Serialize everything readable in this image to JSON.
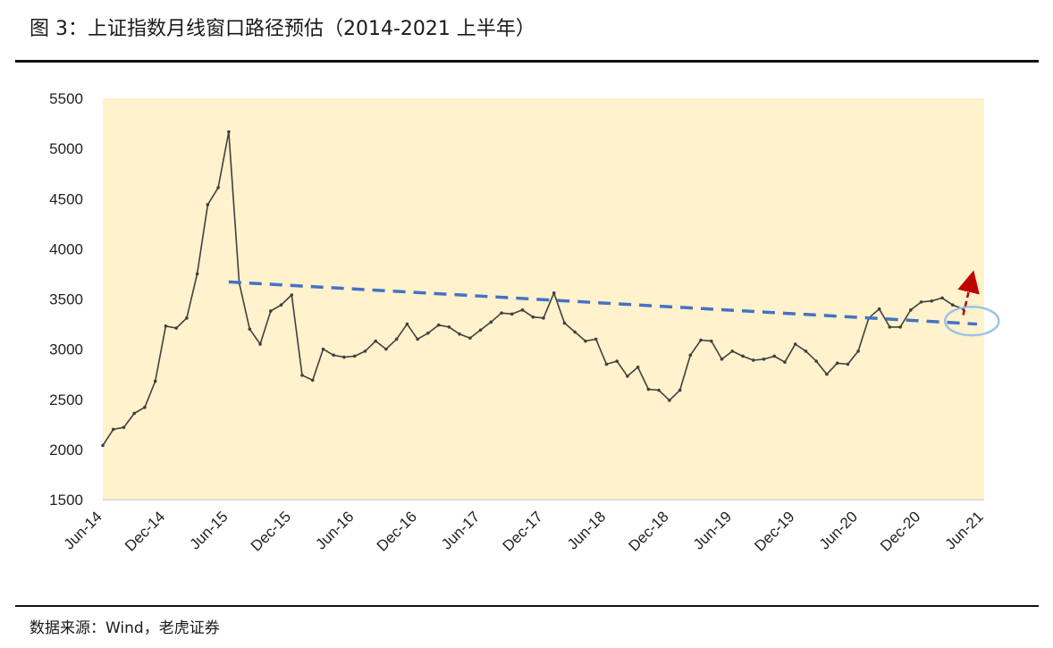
{
  "header": {
    "title": "图 3：上证指数月线窗口路径预估（2014-2021 上半年）"
  },
  "footer": {
    "source": "数据来源：Wind，老虎证券"
  },
  "colors": {
    "plot_background": "#FFF2CC",
    "price": "#404040",
    "trendline": "#4472C4",
    "arrow": "#C00000",
    "ellipse": "#9DC3E6"
  },
  "chart_data": {
    "type": "line",
    "title": "",
    "xlabel": "",
    "ylabel": "",
    "ylim": [
      1500,
      5500
    ],
    "yticks": [
      1500,
      2000,
      2500,
      3000,
      3500,
      4000,
      4500,
      5000,
      5500
    ],
    "xlim": [
      "2014-06",
      "2021-06"
    ],
    "xticks": [
      "Jun-14",
      "Dec-14",
      "Jun-15",
      "Dec-15",
      "Jun-16",
      "Dec-16",
      "Jun-17",
      "Dec-17",
      "Jun-18",
      "Dec-18",
      "Jun-19",
      "Dec-19",
      "Jun-20",
      "Dec-20",
      "Jun-21"
    ],
    "grid": false,
    "legend": "none",
    "series": [
      {
        "values": [
          {
            "x": "2014-06",
            "y": 2040
          },
          {
            "x": "2014-07",
            "y": 2200
          },
          {
            "x": "2014-08",
            "y": 2220
          },
          {
            "x": "2014-09",
            "y": 2360
          },
          {
            "x": "2014-10",
            "y": 2420
          },
          {
            "x": "2014-11",
            "y": 2680
          },
          {
            "x": "2014-12",
            "y": 3230
          },
          {
            "x": "2015-01",
            "y": 3210
          },
          {
            "x": "2015-02",
            "y": 3310
          },
          {
            "x": "2015-03",
            "y": 3750
          },
          {
            "x": "2015-04",
            "y": 4440
          },
          {
            "x": "2015-05",
            "y": 4610
          },
          {
            "x": "2015-06",
            "y": 5166
          },
          {
            "x": "2015-07",
            "y": 3660
          },
          {
            "x": "2015-08",
            "y": 3200
          },
          {
            "x": "2015-09",
            "y": 3050
          },
          {
            "x": "2015-10",
            "y": 3380
          },
          {
            "x": "2015-11",
            "y": 3440
          },
          {
            "x": "2015-12",
            "y": 3540
          },
          {
            "x": "2016-01",
            "y": 2740
          },
          {
            "x": "2016-02",
            "y": 2690
          },
          {
            "x": "2016-03",
            "y": 3000
          },
          {
            "x": "2016-04",
            "y": 2940
          },
          {
            "x": "2016-05",
            "y": 2920
          },
          {
            "x": "2016-06",
            "y": 2930
          },
          {
            "x": "2016-07",
            "y": 2980
          },
          {
            "x": "2016-08",
            "y": 3080
          },
          {
            "x": "2016-09",
            "y": 3000
          },
          {
            "x": "2016-10",
            "y": 3100
          },
          {
            "x": "2016-11",
            "y": 3250
          },
          {
            "x": "2016-12",
            "y": 3100
          },
          {
            "x": "2017-01",
            "y": 3160
          },
          {
            "x": "2017-02",
            "y": 3240
          },
          {
            "x": "2017-03",
            "y": 3220
          },
          {
            "x": "2017-04",
            "y": 3150
          },
          {
            "x": "2017-05",
            "y": 3110
          },
          {
            "x": "2017-06",
            "y": 3190
          },
          {
            "x": "2017-07",
            "y": 3270
          },
          {
            "x": "2017-08",
            "y": 3360
          },
          {
            "x": "2017-09",
            "y": 3350
          },
          {
            "x": "2017-10",
            "y": 3390
          },
          {
            "x": "2017-11",
            "y": 3320
          },
          {
            "x": "2017-12",
            "y": 3310
          },
          {
            "x": "2018-01",
            "y": 3560
          },
          {
            "x": "2018-02",
            "y": 3260
          },
          {
            "x": "2018-03",
            "y": 3170
          },
          {
            "x": "2018-04",
            "y": 3080
          },
          {
            "x": "2018-05",
            "y": 3100
          },
          {
            "x": "2018-06",
            "y": 2850
          },
          {
            "x": "2018-07",
            "y": 2880
          },
          {
            "x": "2018-08",
            "y": 2730
          },
          {
            "x": "2018-09",
            "y": 2820
          },
          {
            "x": "2018-10",
            "y": 2600
          },
          {
            "x": "2018-11",
            "y": 2590
          },
          {
            "x": "2018-12",
            "y": 2490
          },
          {
            "x": "2019-01",
            "y": 2590
          },
          {
            "x": "2019-02",
            "y": 2940
          },
          {
            "x": "2019-03",
            "y": 3090
          },
          {
            "x": "2019-04",
            "y": 3080
          },
          {
            "x": "2019-05",
            "y": 2900
          },
          {
            "x": "2019-06",
            "y": 2980
          },
          {
            "x": "2019-07",
            "y": 2930
          },
          {
            "x": "2019-08",
            "y": 2890
          },
          {
            "x": "2019-09",
            "y": 2900
          },
          {
            "x": "2019-10",
            "y": 2930
          },
          {
            "x": "2019-11",
            "y": 2870
          },
          {
            "x": "2019-12",
            "y": 3050
          },
          {
            "x": "2020-01",
            "y": 2980
          },
          {
            "x": "2020-02",
            "y": 2880
          },
          {
            "x": "2020-03",
            "y": 2750
          },
          {
            "x": "2020-04",
            "y": 2860
          },
          {
            "x": "2020-05",
            "y": 2850
          },
          {
            "x": "2020-06",
            "y": 2980
          },
          {
            "x": "2020-07",
            "y": 3310
          },
          {
            "x": "2020-08",
            "y": 3400
          },
          {
            "x": "2020-09",
            "y": 3220
          },
          {
            "x": "2020-10",
            "y": 3220
          },
          {
            "x": "2020-11",
            "y": 3390
          },
          {
            "x": "2020-12",
            "y": 3470
          },
          {
            "x": "2021-01",
            "y": 3480
          },
          {
            "x": "2021-02",
            "y": 3510
          },
          {
            "x": "2021-03",
            "y": 3440
          },
          {
            "x": "2021-04",
            "y": 3400
          }
        ]
      }
    ],
    "trendline": {
      "points": [
        {
          "x": "2015-06",
          "y": 3670
        },
        {
          "x": "2021-06",
          "y": 3250
        }
      ]
    },
    "projection_arrow": {
      "from": {
        "x": "2021-04",
        "y": 3340
      },
      "to": {
        "x": "2021-06",
        "y": 3700
      }
    },
    "highlight_ellipse": {
      "center": {
        "x": "2021-05",
        "y": 3280
      }
    }
  }
}
